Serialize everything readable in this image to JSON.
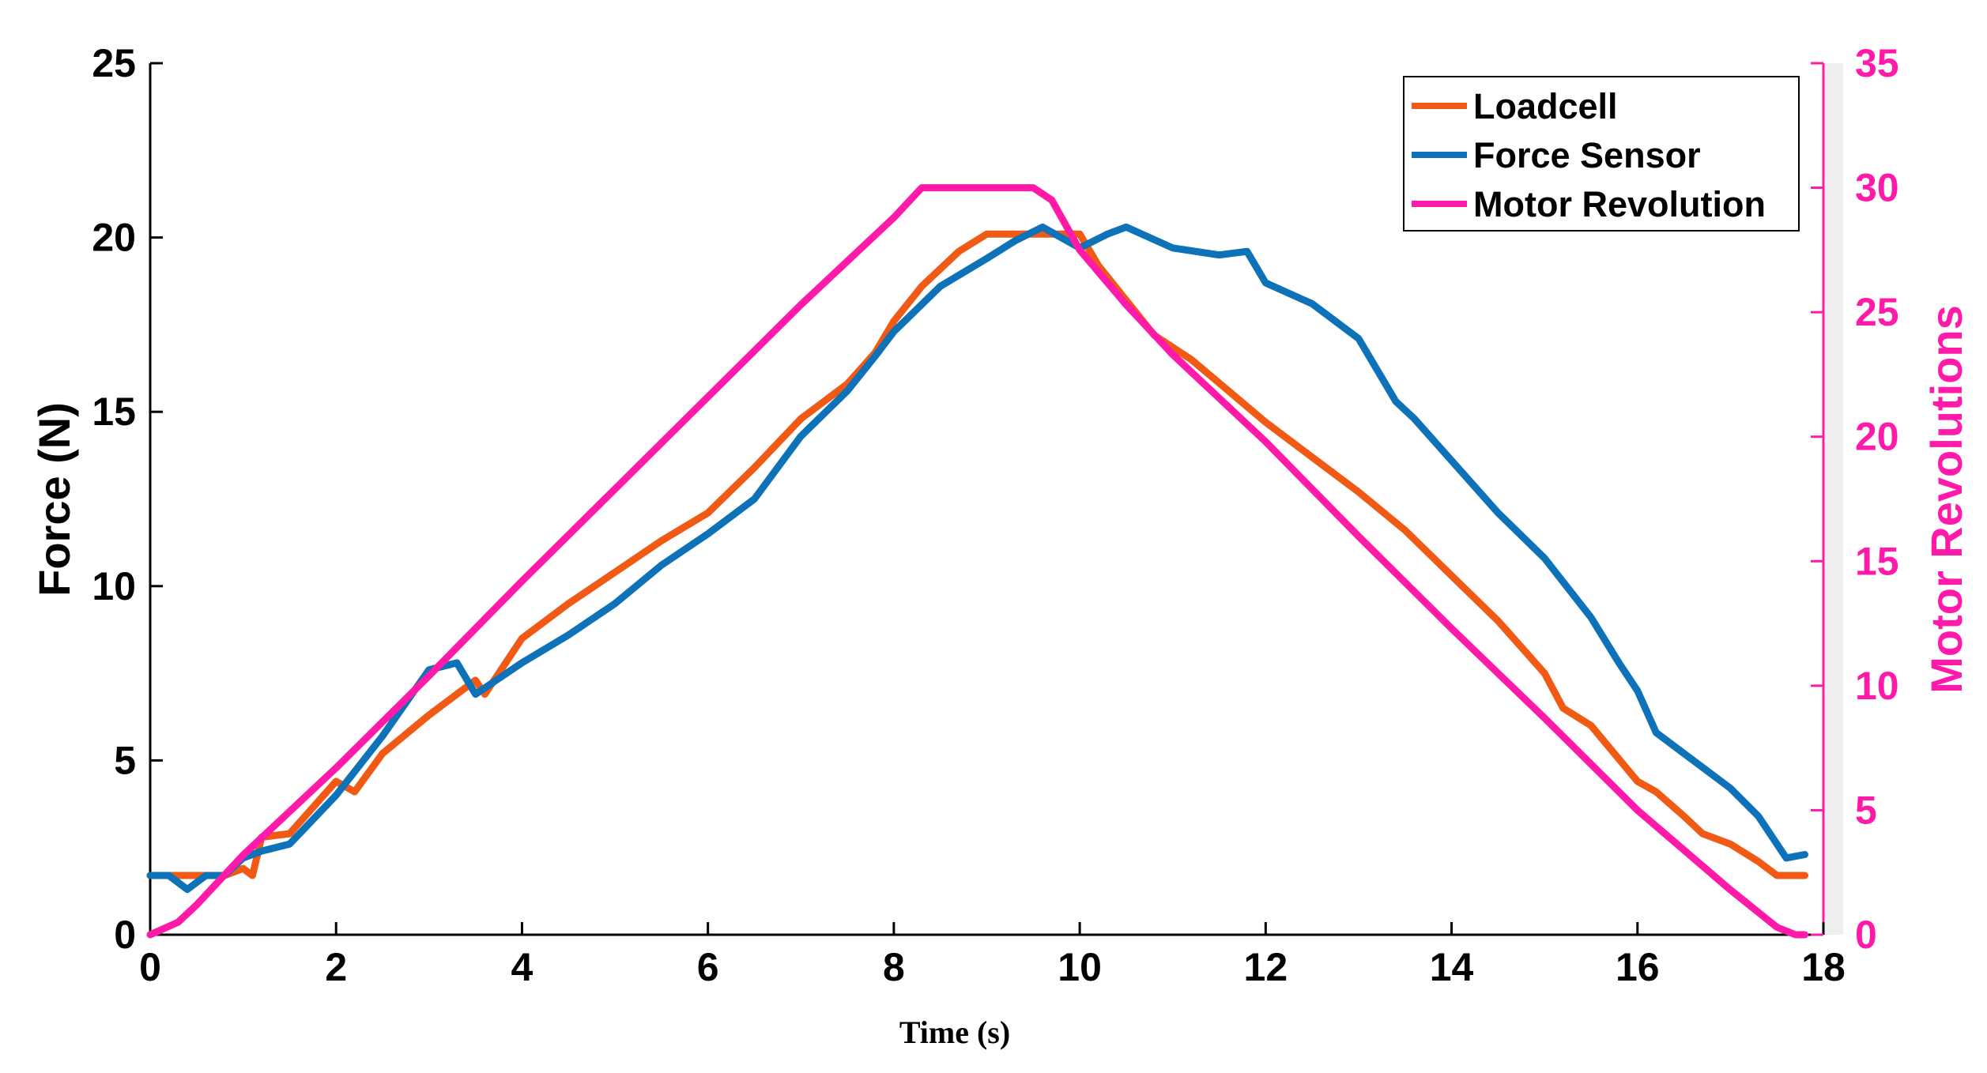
{
  "chart_data": {
    "type": "line",
    "title": "",
    "xlabel": "Time (s)",
    "ylabel": "Force (N)",
    "ylabel_right": "Motor Revolutions",
    "xlim": [
      0,
      18
    ],
    "ylim": [
      0,
      25
    ],
    "ylim_right": [
      0,
      35
    ],
    "x_ticks": [
      "0",
      "2",
      "4",
      "6",
      "8",
      "10",
      "12",
      "14",
      "16",
      "18"
    ],
    "y_ticks": [
      "0",
      "5",
      "10",
      "15",
      "20",
      "25"
    ],
    "y_ticks_right": [
      "0",
      "5",
      "10",
      "15",
      "20",
      "25",
      "30",
      "35"
    ],
    "grid": false,
    "legend_position": "top-right",
    "series": [
      {
        "name": "Loadcell",
        "color": "#f05a14",
        "axis": "left",
        "x": [
          0,
          0.5,
          0.8,
          1.0,
          1.1,
          1.2,
          1.5,
          2.0,
          2.2,
          2.5,
          3.0,
          3.5,
          3.6,
          4.0,
          4.5,
          5.0,
          5.5,
          6.0,
          6.5,
          7.0,
          7.5,
          7.8,
          8.0,
          8.3,
          8.7,
          9.0,
          9.3,
          9.6,
          10.0,
          10.2,
          10.5,
          10.8,
          11.2,
          11.6,
          12.0,
          12.5,
          13.0,
          13.5,
          14.0,
          14.5,
          15.0,
          15.2,
          15.5,
          16.0,
          16.2,
          16.5,
          16.7,
          17.0,
          17.3,
          17.5,
          17.8
        ],
        "values": [
          1.7,
          1.7,
          1.7,
          1.9,
          1.7,
          2.8,
          2.9,
          4.4,
          4.1,
          5.2,
          6.3,
          7.3,
          6.9,
          8.5,
          9.5,
          10.4,
          11.3,
          12.1,
          13.4,
          14.8,
          15.8,
          16.7,
          17.6,
          18.6,
          19.6,
          20.1,
          20.1,
          20.1,
          20.1,
          19.2,
          18.2,
          17.2,
          16.5,
          15.6,
          14.7,
          13.7,
          12.7,
          11.6,
          10.3,
          9.0,
          7.5,
          6.5,
          6.0,
          4.4,
          4.1,
          3.4,
          2.9,
          2.6,
          2.1,
          1.7,
          1.7
        ]
      },
      {
        "name": "Force Sensor",
        "color": "#0d72b8",
        "axis": "left",
        "x": [
          0,
          0.2,
          0.4,
          0.6,
          0.8,
          1.0,
          1.2,
          1.5,
          2.0,
          2.5,
          3.0,
          3.3,
          3.5,
          4.0,
          4.5,
          5.0,
          5.5,
          6.0,
          6.5,
          7.0,
          7.5,
          7.8,
          8.0,
          8.5,
          9.0,
          9.3,
          9.6,
          10.0,
          10.3,
          10.5,
          11.0,
          11.5,
          11.8,
          12.0,
          12.5,
          13.0,
          13.2,
          13.4,
          13.6,
          14.0,
          14.5,
          15.0,
          15.5,
          15.8,
          16.0,
          16.2,
          16.5,
          17.0,
          17.3,
          17.6,
          17.8
        ],
        "values": [
          1.7,
          1.7,
          1.3,
          1.7,
          1.7,
          2.2,
          2.4,
          2.6,
          4.0,
          5.7,
          7.6,
          7.8,
          6.9,
          7.8,
          8.6,
          9.5,
          10.6,
          11.5,
          12.5,
          14.3,
          15.6,
          16.6,
          17.3,
          18.6,
          19.4,
          19.9,
          20.3,
          19.7,
          20.1,
          20.3,
          19.7,
          19.5,
          19.6,
          18.7,
          18.1,
          17.1,
          16.2,
          15.3,
          14.8,
          13.6,
          12.1,
          10.8,
          9.1,
          7.8,
          7.0,
          5.8,
          5.2,
          4.2,
          3.4,
          2.2,
          2.3
        ]
      },
      {
        "name": "Motor Revolution",
        "color": "#ff1aaa",
        "axis": "right",
        "x": [
          0,
          0.3,
          0.5,
          1.0,
          2.0,
          3.0,
          4.0,
          5.0,
          6.0,
          7.0,
          8.0,
          8.3,
          8.6,
          9.0,
          9.5,
          9.7,
          10.0,
          10.5,
          11.0,
          12.0,
          13.0,
          14.0,
          15.0,
          16.0,
          17.0,
          17.5,
          17.7,
          17.8
        ],
        "values": [
          0,
          0.5,
          1.2,
          3.2,
          6.7,
          10.4,
          14.2,
          17.9,
          21.6,
          25.3,
          28.8,
          30.0,
          30.0,
          30.0,
          30.0,
          29.5,
          27.5,
          25.3,
          23.3,
          19.8,
          16.0,
          12.3,
          8.7,
          5.0,
          1.8,
          0.3,
          0,
          0
        ]
      }
    ]
  }
}
